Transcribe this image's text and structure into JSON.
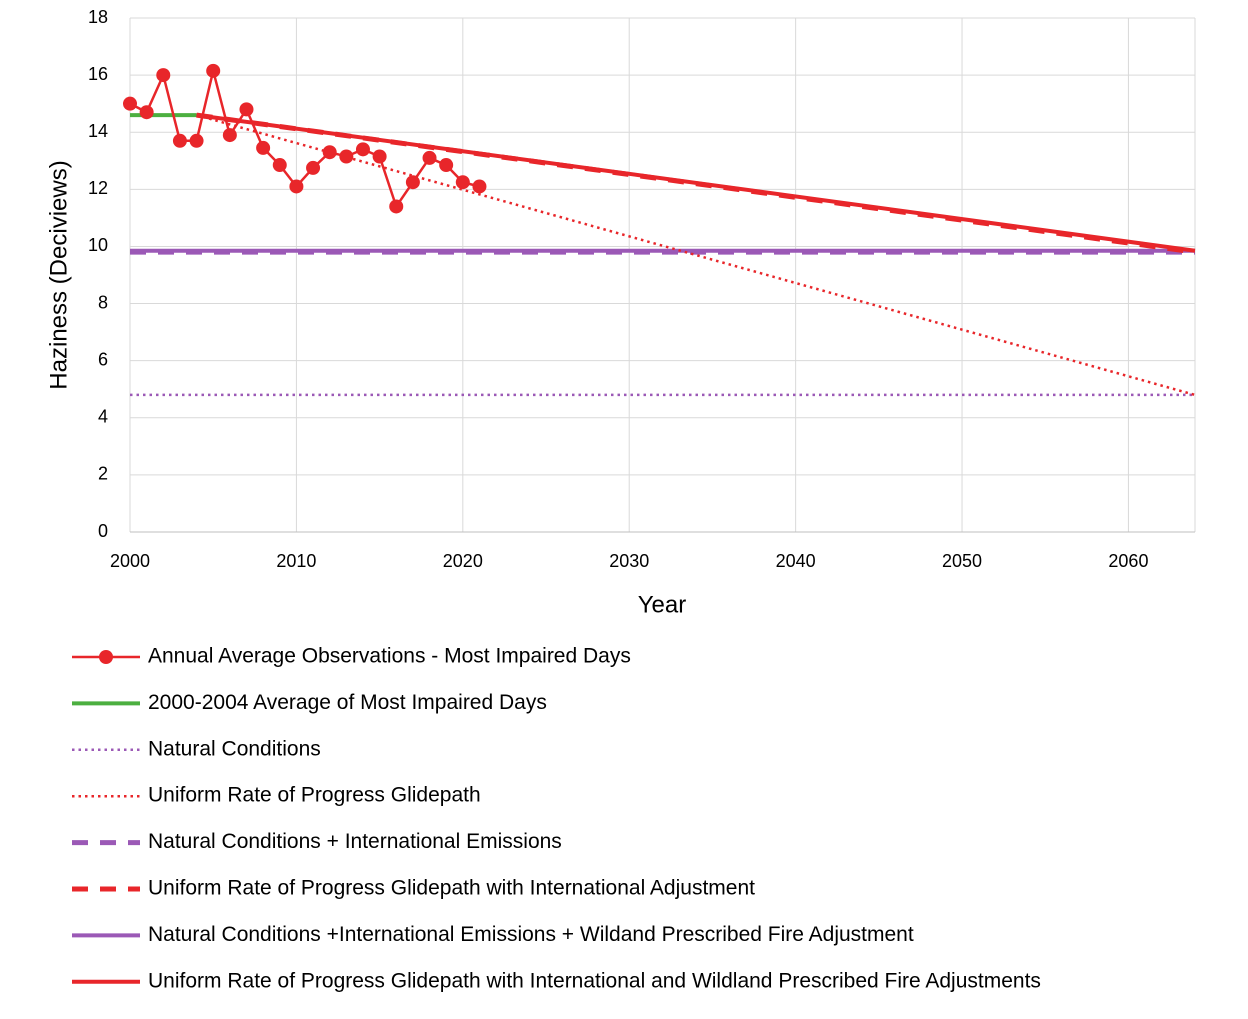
{
  "chart_data": {
    "type": "line",
    "x_label": "Year",
    "y_label": "Haziness (Deciviews)",
    "xlim": [
      2000,
      2064
    ],
    "xticks": [
      2000,
      2010,
      2020,
      2030,
      2040,
      2050,
      2060
    ],
    "ylim": [
      0,
      18
    ],
    "yticks": [
      0,
      2,
      4,
      6,
      8,
      10,
      12,
      14,
      16,
      18
    ],
    "grid": true,
    "series": [
      {
        "name": "Annual Average Observations - Most Impaired Days",
        "color": "#e8262a",
        "line_style": "solid",
        "marker": "circle",
        "x": [
          2000,
          2001,
          2002,
          2003,
          2004,
          2005,
          2006,
          2007,
          2008,
          2009,
          2010,
          2011,
          2012,
          2013,
          2014,
          2015,
          2016,
          2017,
          2018,
          2019,
          2020,
          2021
        ],
        "values": [
          15.0,
          14.7,
          16.0,
          13.7,
          13.7,
          16.15,
          13.9,
          14.8,
          13.45,
          12.85,
          12.1,
          12.75,
          13.3,
          13.15,
          13.4,
          13.15,
          11.4,
          12.25,
          13.1,
          12.85,
          12.25,
          12.1
        ]
      },
      {
        "name": "2000-2004 Average of Most Impaired Days",
        "color": "#4caf40",
        "line_style": "solid",
        "x": [
          2000,
          2004
        ],
        "values": [
          14.6,
          14.6
        ]
      },
      {
        "name": "Natural Conditions",
        "color": "#9b59b6",
        "line_style": "dotted",
        "x": [
          2000,
          2064
        ],
        "values": [
          4.8,
          4.8
        ]
      },
      {
        "name": "Uniform Rate of Progress Glidepath",
        "color": "#e8262a",
        "line_style": "dotted",
        "x": [
          2004,
          2064
        ],
        "values": [
          14.6,
          4.8
        ]
      },
      {
        "name": "Natural Conditions + International Emissions",
        "color": "#9b59b6",
        "line_style": "dashed",
        "x": [
          2000,
          2064
        ],
        "values": [
          9.8,
          9.8
        ]
      },
      {
        "name": "Uniform Rate of Progress Glidepath with International Adjustment",
        "color": "#e8262a",
        "line_style": "dashed",
        "x": [
          2004,
          2064
        ],
        "values": [
          14.6,
          9.8
        ]
      },
      {
        "name": "Natural Conditions +International Emissions + Wildand Prescribed Fire Adjustment",
        "color": "#9b59b6",
        "line_style": "solid",
        "x": [
          2000,
          2064
        ],
        "values": [
          9.85,
          9.85
        ]
      },
      {
        "name": "Uniform Rate of Progress Glidepath with International and Wildland Prescribed Fire Adjustments",
        "color": "#e8262a",
        "line_style": "solid",
        "x": [
          2004,
          2064
        ],
        "values": [
          14.6,
          9.85
        ]
      }
    ]
  }
}
